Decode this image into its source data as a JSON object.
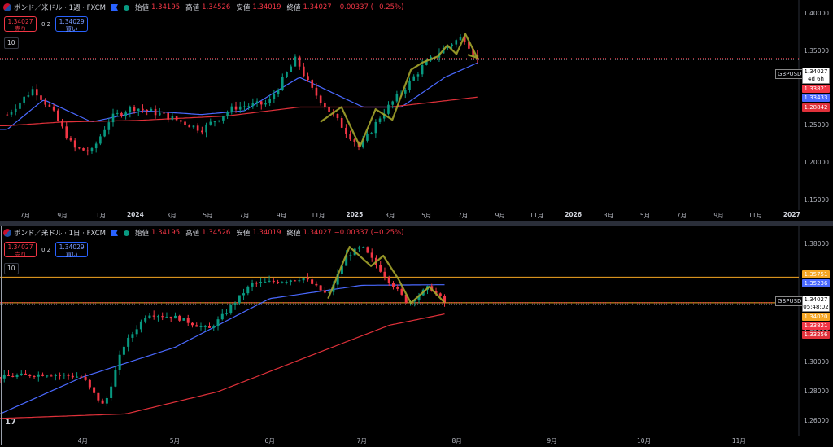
{
  "colors": {
    "up": "#089981",
    "down": "#f23645",
    "ma_fast": "#4a69ff",
    "ma_slow": "#e0313a",
    "pattern": "#a3a32b",
    "level": "#f5a623",
    "bg": "#000000"
  },
  "top": {
    "title": "ポンド／米ドル · 1週 · FXCM",
    "ohlc": [
      {
        "k": "始値",
        "v": "1.34195"
      },
      {
        "k": "高値",
        "v": "1.34526"
      },
      {
        "k": "安値",
        "v": "1.34019"
      },
      {
        "k": "終値",
        "v": "1.34027"
      }
    ],
    "change": "−0.00337 (−0.25%)",
    "sell_price": "1.34027",
    "sell_label": "売り",
    "spread": "0.2",
    "buy_price": "1.34029",
    "buy_label": "買い",
    "lot": "10",
    "x_labels": [
      "7月",
      "9月",
      "11月",
      "2024",
      "3月",
      "5月",
      "7月",
      "9月",
      "11月",
      "2025",
      "3月",
      "5月",
      "7月",
      "9月",
      "11月",
      "2026",
      "3月",
      "5月",
      "7月",
      "9月",
      "11月",
      "2027"
    ],
    "y_labels": [
      "1.40000",
      "1.35000",
      "1.30000",
      "1.25000",
      "1.20000",
      "1.15000"
    ],
    "ticker": "GBPUSD",
    "cur_price": "1.34027",
    "countdown": "4d 6h",
    "tags": [
      {
        "text": "1.33821",
        "color": "#f23645"
      },
      {
        "text": "1.33433",
        "color": "#4a69ff"
      },
      {
        "text": "1.28842",
        "color": "#e0313a"
      }
    ]
  },
  "bottom": {
    "title": "ポンド／米ドル · 1日 · FXCM",
    "ohlc": [
      {
        "k": "始値",
        "v": "1.34195"
      },
      {
        "k": "高値",
        "v": "1.34526"
      },
      {
        "k": "安値",
        "v": "1.34019"
      },
      {
        "k": "終値",
        "v": "1.34027"
      }
    ],
    "change": "−0.00337 (−0.25%)",
    "sell_price": "1.34027",
    "sell_label": "売り",
    "spread": "0.2",
    "buy_price": "1.34029",
    "buy_label": "買い",
    "lot": "10",
    "x_labels": [
      "4月",
      "5月",
      "6月",
      "7月",
      "8月",
      "9月",
      "10月",
      "11月"
    ],
    "y_labels": [
      "1.38000",
      "1.36000",
      "1.34000",
      "1.32000",
      "1.30000",
      "1.28000",
      "1.26000"
    ],
    "ticker": "GBPUSD",
    "cur_price": "1.34027",
    "countdown": "05:48:02",
    "tags_above": [
      {
        "text": "1.35751",
        "color": "#f5a623"
      },
      {
        "text": "1.35236",
        "color": "#4a69ff"
      }
    ],
    "tags_below": [
      {
        "text": "1.34020",
        "color": "#f5a623"
      },
      {
        "text": "1.33821",
        "color": "#f23645"
      },
      {
        "text": "1.33256",
        "color": "#e0313a"
      }
    ]
  },
  "chart_data": [
    {
      "type": "candlestick",
      "title": "ポンド／米ドル · 1週 · FXCM",
      "ylim": [
        1.14,
        1.41
      ],
      "x_range": [
        "2023-06",
        "2027-01"
      ],
      "close_path": [
        [
          "2023-06-01",
          1.265
        ],
        [
          "2023-07-15",
          1.3
        ],
        [
          "2023-08-15",
          1.27
        ],
        [
          "2023-09-20",
          1.22
        ],
        [
          "2023-10-20",
          1.215
        ],
        [
          "2023-11-20",
          1.26
        ],
        [
          "2023-12-28",
          1.275
        ],
        [
          "2024-02-15",
          1.265
        ],
        [
          "2024-04-20",
          1.245
        ],
        [
          "2024-06-15",
          1.275
        ],
        [
          "2024-08-10",
          1.28
        ],
        [
          "2024-09-25",
          1.34
        ],
        [
          "2024-10-20",
          1.3
        ],
        [
          "2024-11-20",
          1.27
        ],
        [
          "2025-01-10",
          1.22
        ],
        [
          "2025-02-15",
          1.265
        ],
        [
          "2025-03-20",
          1.295
        ],
        [
          "2025-04-25",
          1.33
        ],
        [
          "2025-06-01",
          1.355
        ],
        [
          "2025-07-01",
          1.37
        ],
        [
          "2025-07-25",
          1.3403
        ]
      ],
      "series": [
        {
          "name": "MA fast",
          "values_path": [
            [
              "2023-06-01",
              1.245
            ],
            [
              "2023-08-01",
              1.285
            ],
            [
              "2023-10-20",
              1.255
            ],
            [
              "2024-01-15",
              1.27
            ],
            [
              "2024-04-20",
              1.265
            ],
            [
              "2024-07-01",
              1.27
            ],
            [
              "2024-10-01",
              1.315
            ],
            [
              "2025-01-15",
              1.275
            ],
            [
              "2025-03-20",
              1.275
            ],
            [
              "2025-06-01",
              1.315
            ],
            [
              "2025-07-25",
              1.3343
            ]
          ]
        },
        {
          "name": "MA slow",
          "values_path": [
            [
              "2023-06-01",
              1.25
            ],
            [
              "2023-09-01",
              1.255
            ],
            [
              "2024-01-01",
              1.257
            ],
            [
              "2024-06-01",
              1.263
            ],
            [
              "2024-10-01",
              1.275
            ],
            [
              "2025-03-01",
              1.275
            ],
            [
              "2025-07-25",
              1.2884
            ]
          ]
        }
      ],
      "last_price": 1.34027
    },
    {
      "type": "candlestick",
      "title": "ポンド／米ドル · 1日 · FXCM",
      "ylim": [
        1.252,
        1.388
      ],
      "x_range": [
        "2025-03-05",
        "2025-11-20"
      ],
      "close_path": [
        [
          "2025-03-05",
          1.29
        ],
        [
          "2025-03-20",
          1.292
        ],
        [
          "2025-04-01",
          1.29
        ],
        [
          "2025-04-04",
          1.28
        ],
        [
          "2025-04-08",
          1.27
        ],
        [
          "2025-04-14",
          1.31
        ],
        [
          "2025-04-22",
          1.333
        ],
        [
          "2025-05-02",
          1.33
        ],
        [
          "2025-05-12",
          1.322
        ],
        [
          "2025-05-16",
          1.33
        ],
        [
          "2025-05-26",
          1.353
        ],
        [
          "2025-06-05",
          1.355
        ],
        [
          "2025-06-12",
          1.357
        ],
        [
          "2025-06-20",
          1.345
        ],
        [
          "2025-06-26",
          1.372
        ],
        [
          "2025-07-01",
          1.378
        ],
        [
          "2025-07-08",
          1.36
        ],
        [
          "2025-07-16",
          1.34
        ],
        [
          "2025-07-23",
          1.351
        ],
        [
          "2025-07-28",
          1.3403
        ]
      ],
      "series": [
        {
          "name": "MA fast",
          "values_path": [
            [
              "2025-03-05",
              1.265
            ],
            [
              "2025-04-01",
              1.29
            ],
            [
              "2025-05-01",
              1.31
            ],
            [
              "2025-06-01",
              1.343
            ],
            [
              "2025-07-01",
              1.352
            ],
            [
              "2025-07-28",
              1.3524
            ]
          ]
        },
        {
          "name": "MA slow",
          "values_path": [
            [
              "2025-03-05",
              1.262
            ],
            [
              "2025-04-15",
              1.265
            ],
            [
              "2025-05-15",
              1.28
            ],
            [
              "2025-06-15",
              1.305
            ],
            [
              "2025-07-10",
              1.325
            ],
            [
              "2025-07-28",
              1.3326
            ]
          ]
        }
      ],
      "levels": [
        1.35751,
        1.3402
      ],
      "last_price": 1.34027
    }
  ]
}
